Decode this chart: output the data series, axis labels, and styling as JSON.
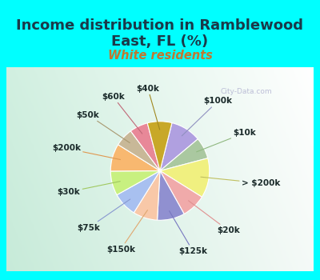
{
  "title_line1": "Income distribution in Ramblewood",
  "title_line2": "East, FL (%)",
  "subtitle": "White residents",
  "bg_color": "#00ffff",
  "panel_bg_left": "#c8eedd",
  "panel_bg_right": "#d8f0f8",
  "watermark": "City-Data.com",
  "labels": [
    "$100k",
    "$10k",
    "> $200k",
    "$20k",
    "$125k",
    "$150k",
    "$75k",
    "$30k",
    "$200k",
    "$50k",
    "$60k",
    "$40k"
  ],
  "values": [
    10,
    7,
    13,
    8,
    9,
    8,
    8,
    8,
    9,
    6,
    6,
    8
  ],
  "colors": [
    "#b0a0e0",
    "#aac8a0",
    "#f0f080",
    "#f0aaaa",
    "#9090d0",
    "#f8c8a8",
    "#a8c0f0",
    "#c8f080",
    "#f8b870",
    "#c8b898",
    "#e88898",
    "#c8a828"
  ],
  "line_colors": [
    "#9090c0",
    "#90b880",
    "#c0c060",
    "#e09090",
    "#7878c0",
    "#e0a870",
    "#8898d0",
    "#a0c860",
    "#e09850",
    "#a89870",
    "#c06878",
    "#a08820"
  ],
  "label_fontsize": 7.5,
  "title_fontsize": 13,
  "subtitle_fontsize": 10.5
}
